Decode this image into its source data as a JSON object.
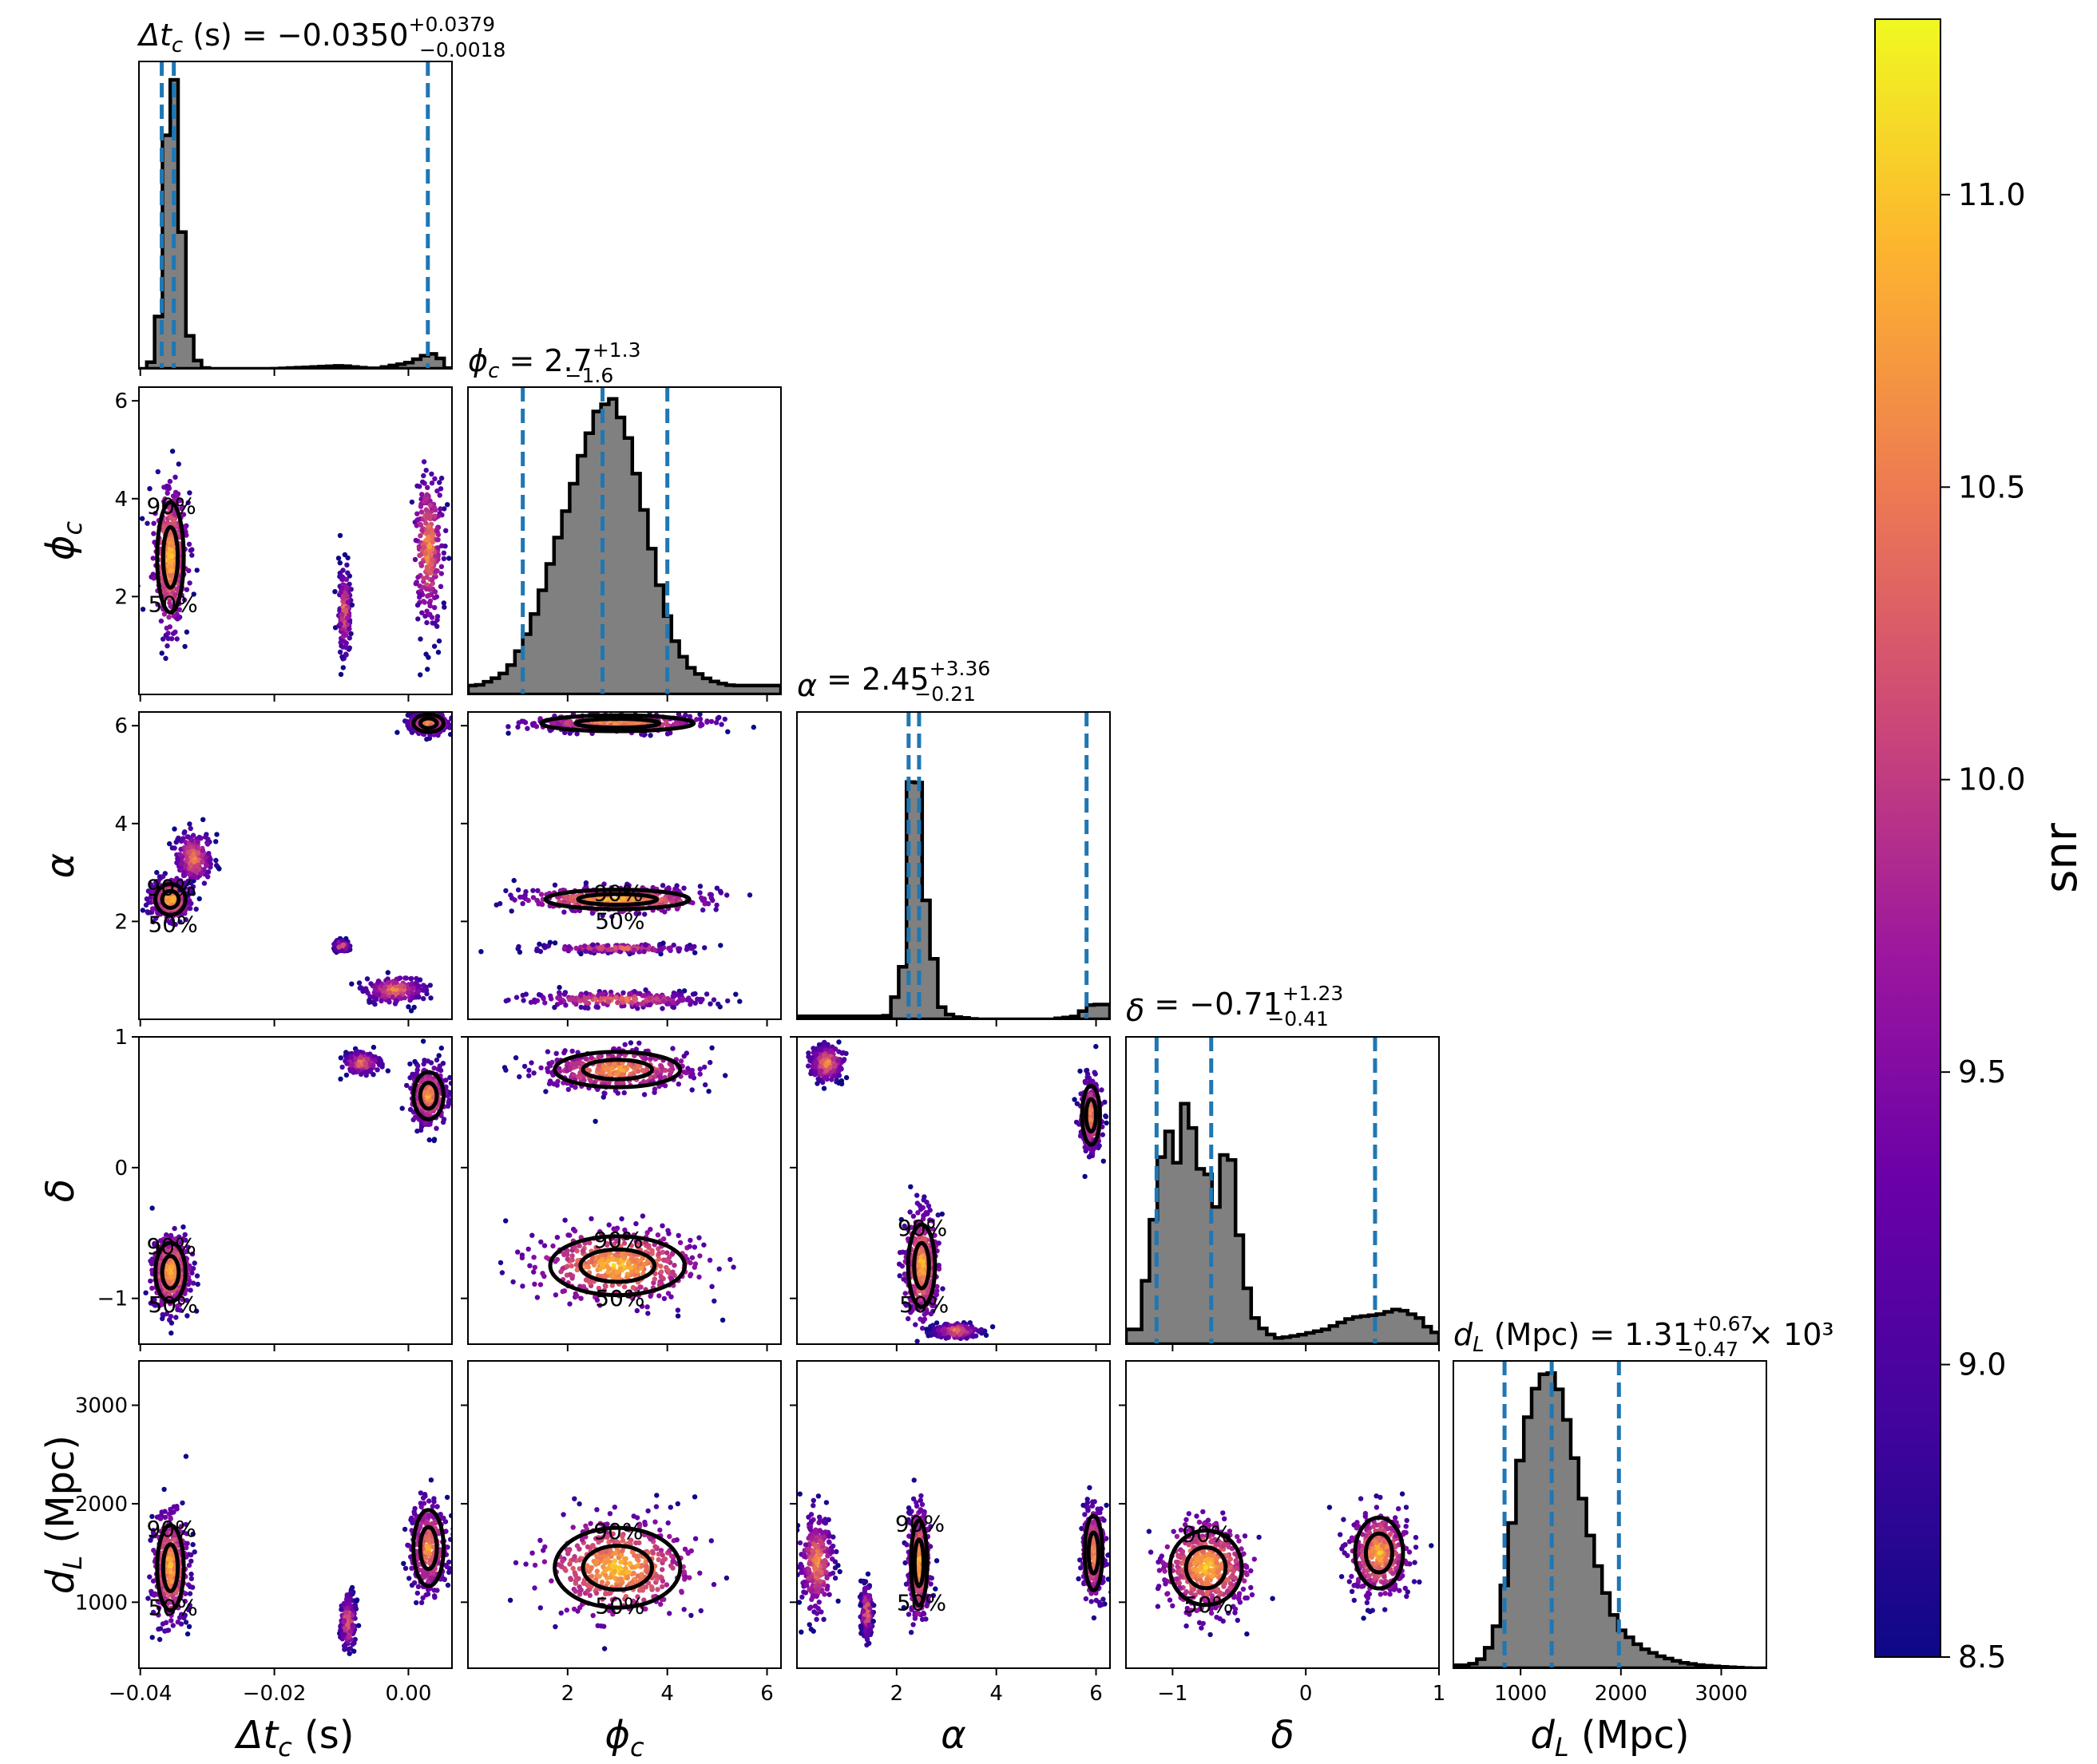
{
  "colorbar": {
    "label": "snr",
    "min": 8.5,
    "max": 11.3,
    "ticks": [
      "8.5",
      "9.0",
      "9.5",
      "10.0",
      "10.5",
      "11.0"
    ],
    "colormap": "plasma"
  },
  "panel_titles": {
    "tc": {
      "lhs": "Δt",
      "sub": "c",
      "unit": " (s) = ",
      "val": "−0.0350",
      "plus": "+0.0379",
      "minus": "−0.0018",
      "suffix": ""
    },
    "phi": {
      "lhs": "ϕ",
      "sub": "c",
      "unit": " = ",
      "val": "2.7",
      "plus": "+1.3",
      "minus": "−1.6",
      "suffix": ""
    },
    "alpha": {
      "lhs": "α",
      "sub": "",
      "unit": " = ",
      "val": "2.45",
      "plus": "+3.36",
      "minus": "−0.21",
      "suffix": ""
    },
    "delta": {
      "lhs": "δ",
      "sub": "",
      "unit": " = ",
      "val": "−0.71",
      "plus": "+1.23",
      "minus": "−0.41",
      "suffix": ""
    },
    "dl": {
      "lhs": "d",
      "sub": "L",
      "unit": " (Mpc) = ",
      "val": "1.31",
      "plus": "+0.67",
      "minus": "−0.47",
      "suffix": " × 10³"
    }
  },
  "axis_labels": {
    "tc": {
      "main": "Δt",
      "sub": "c",
      "tail": " (s)"
    },
    "phi": {
      "main": "ϕ",
      "sub": "c",
      "tail": ""
    },
    "alpha": {
      "main": "α",
      "sub": "",
      "tail": ""
    },
    "delta": {
      "main": "δ",
      "sub": "",
      "tail": ""
    },
    "dl": {
      "main": "d",
      "sub": "L",
      "tail": " (Mpc)"
    }
  },
  "tick_labels": {
    "tc_x": [
      "−0.04",
      "−0.02",
      "0.00"
    ],
    "phi_x": [
      "2",
      "4",
      "6"
    ],
    "alpha_x": [
      "2",
      "4",
      "6"
    ],
    "delta_x": [
      "−1",
      "0",
      "1"
    ],
    "dl_x": [
      "1000",
      "2000",
      "3000"
    ],
    "phi_y": [
      "2",
      "4",
      "6"
    ],
    "alpha_y": [
      "2",
      "4",
      "6"
    ],
    "delta_y": [
      "−1",
      "0",
      "1"
    ],
    "dl_y": [
      "1000",
      "2000",
      "3000"
    ]
  },
  "contour_labels": {
    "p50": "50%",
    "p90": "90%"
  },
  "chart_data": {
    "type": "corner",
    "parameters": [
      "tc",
      "phi",
      "alpha",
      "delta",
      "dl"
    ],
    "ranges": {
      "tc": [
        -0.0402,
        0.0065
      ],
      "phi": [
        0.0,
        6.28
      ],
      "alpha": [
        0.0,
        6.28
      ],
      "delta": [
        -1.35,
        1.0
      ],
      "dl": [
        330,
        3450
      ]
    },
    "quantiles": {
      "tc": [
        -0.0368,
        -0.035,
        0.0029
      ],
      "phi": [
        1.1,
        2.7,
        4.0
      ],
      "alpha": [
        2.24,
        2.45,
        5.81
      ],
      "delta": [
        -1.12,
        -0.71,
        0.52
      ],
      "dl": [
        840,
        1310,
        1980
      ]
    },
    "histograms": {
      "tc": {
        "x": [
          -0.04,
          -0.039,
          -0.038,
          -0.037,
          -0.036,
          -0.035,
          -0.034,
          -0.033,
          -0.032,
          -0.031,
          -0.03,
          -0.02,
          -0.01,
          -0.005,
          0.0,
          0.001,
          0.002,
          0.003,
          0.004,
          0.005,
          0.006
        ],
        "y": [
          0.0,
          0.0,
          0.04,
          0.23,
          0.86,
          1.0,
          0.55,
          0.15,
          0.05,
          0.01,
          0.0,
          0.0,
          0.01,
          0.0,
          0.02,
          0.03,
          0.04,
          0.05,
          0.05,
          0.03,
          0.0
        ]
      },
      "phi": {
        "x": [
          0.2,
          0.5,
          0.8,
          1.1,
          1.4,
          1.7,
          2.0,
          2.3,
          2.6,
          2.9,
          3.2,
          3.5,
          3.8,
          4.1,
          4.4,
          4.7,
          5.0,
          5.3,
          5.6,
          5.9,
          6.2
        ],
        "y": [
          0.03,
          0.05,
          0.08,
          0.17,
          0.3,
          0.47,
          0.64,
          0.82,
          0.96,
          1.0,
          0.88,
          0.65,
          0.4,
          0.2,
          0.1,
          0.06,
          0.04,
          0.03,
          0.03,
          0.03,
          0.03
        ]
      },
      "alpha": {
        "x": [
          0.3,
          0.8,
          1.3,
          1.8,
          2.1,
          2.22,
          2.3,
          2.38,
          2.46,
          2.55,
          2.65,
          2.75,
          2.85,
          3.1,
          3.6,
          4.1,
          4.6,
          5.1,
          5.6,
          5.9,
          6.2
        ],
        "y": [
          0.01,
          0.01,
          0.01,
          0.01,
          0.13,
          0.42,
          0.96,
          1.0,
          0.7,
          0.43,
          0.36,
          0.2,
          0.05,
          0.01,
          0.0,
          0.0,
          0.0,
          0.0,
          0.01,
          0.05,
          0.05
        ]
      },
      "delta": {
        "x": [
          -1.25,
          -1.15,
          -1.05,
          -0.95,
          -0.88,
          -0.82,
          -0.76,
          -0.7,
          -0.62,
          -0.55,
          -0.48,
          -0.4,
          -0.3,
          -0.2,
          -0.05,
          0.15,
          0.35,
          0.55,
          0.7,
          0.85,
          0.95
        ],
        "y": [
          0.05,
          0.4,
          0.76,
          0.58,
          0.98,
          0.47,
          0.73,
          0.38,
          0.64,
          0.62,
          0.28,
          0.1,
          0.04,
          0.02,
          0.03,
          0.05,
          0.09,
          0.1,
          0.12,
          0.09,
          0.04
        ]
      },
      "dl": {
        "x": [
          500,
          650,
          800,
          900,
          1000,
          1100,
          1200,
          1300,
          1400,
          1500,
          1600,
          1700,
          1800,
          1900,
          2000,
          2200,
          2400,
          2600,
          2800,
          3000,
          3300
        ],
        "y": [
          0.01,
          0.04,
          0.18,
          0.45,
          0.72,
          0.9,
          0.99,
          1.0,
          0.93,
          0.78,
          0.6,
          0.44,
          0.31,
          0.2,
          0.13,
          0.07,
          0.04,
          0.02,
          0.01,
          0.005,
          0.0
        ]
      }
    },
    "scatter_clusters": {
      "phi|tc": [
        [
          -0.0355,
          2.8,
          0.0022,
          1.25,
          0.9
        ],
        [
          0.003,
          3.0,
          0.002,
          1.4,
          0.55
        ],
        [
          -0.0095,
          1.7,
          0.0008,
          0.8,
          0.3
        ]
      ],
      "alpha|tc": [
        [
          -0.0355,
          2.45,
          0.0025,
          0.35,
          0.9
        ],
        [
          -0.032,
          3.3,
          0.0025,
          0.5,
          0.4
        ],
        [
          0.003,
          6.05,
          0.0025,
          0.2,
          0.7
        ],
        [
          -0.002,
          0.6,
          0.004,
          0.25,
          0.4
        ],
        [
          -0.01,
          1.5,
          0.001,
          0.1,
          0.3
        ]
      ],
      "delta|tc": [
        [
          -0.0355,
          -0.8,
          0.0025,
          0.25,
          0.9
        ],
        [
          0.003,
          0.55,
          0.0025,
          0.2,
          0.7
        ],
        [
          -0.007,
          0.8,
          0.0025,
          0.08,
          0.3
        ]
      ],
      "dl|tc": [
        [
          -0.0355,
          1350,
          0.0022,
          480,
          0.9
        ],
        [
          0.003,
          1550,
          0.0025,
          430,
          0.6
        ],
        [
          -0.009,
          800,
          0.001,
          250,
          0.3
        ]
      ],
      "alpha|phi": [
        [
          3.0,
          2.45,
          1.6,
          0.22,
          0.95
        ],
        [
          3.0,
          6.05,
          1.7,
          0.18,
          0.6
        ],
        [
          3.0,
          0.4,
          1.7,
          0.15,
          0.4
        ],
        [
          3.0,
          1.45,
          1.5,
          0.08,
          0.25
        ]
      ],
      "delta|phi": [
        [
          3.0,
          -0.75,
          1.5,
          0.25,
          0.95
        ],
        [
          3.0,
          0.75,
          1.4,
          0.15,
          0.7
        ]
      ],
      "dl|phi": [
        [
          3.0,
          1350,
          1.4,
          450,
          0.95
        ]
      ],
      "delta|alpha": [
        [
          2.5,
          -0.75,
          0.3,
          0.35,
          0.9
        ],
        [
          5.9,
          0.4,
          0.2,
          0.25,
          0.6
        ],
        [
          0.6,
          0.8,
          0.3,
          0.12,
          0.5
        ],
        [
          3.2,
          -1.25,
          0.4,
          0.05,
          0.4
        ]
      ],
      "dl|alpha": [
        [
          2.45,
          1400,
          0.18,
          480,
          0.95
        ],
        [
          5.95,
          1500,
          0.2,
          420,
          0.7
        ],
        [
          0.4,
          1400,
          0.3,
          450,
          0.5
        ],
        [
          1.4,
          900,
          0.1,
          250,
          0.3
        ]
      ],
      "dl|delta": [
        [
          -0.75,
          1350,
          0.3,
          420,
          0.95
        ],
        [
          0.55,
          1500,
          0.2,
          400,
          0.8
        ]
      ]
    }
  }
}
